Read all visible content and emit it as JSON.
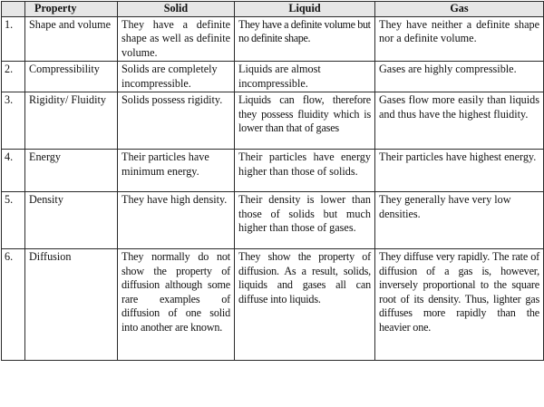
{
  "headers": {
    "num": "",
    "property": "Property",
    "solid": "Solid",
    "liquid": "Liquid",
    "gas": "Gas"
  },
  "rows": [
    {
      "num": "1.",
      "property": "Shape and volume",
      "solid": "They have a definite shape as well as definite volume.",
      "liquid": "They have a definite volume but no definite shape.",
      "gas": "They have neither a definite shape nor a definite volume."
    },
    {
      "num": "2.",
      "property": "Compressibility",
      "solid": "Solids are completely incompressible.",
      "liquid": "Liquids are almost incompressible.",
      "gas": "Gases are highly compressible."
    },
    {
      "num": "3.",
      "property": "Rigidity/ Fluidity",
      "solid": "Solids possess rigidity.",
      "liquid": "Liquids can flow, therefore they possess fluidity which is lower than that of gases",
      "gas": "Gases flow more easily than liquids and thus have the highest fluidity."
    },
    {
      "num": "4.",
      "property": "Energy",
      "solid": "Their particles have minimum energy.",
      "liquid": "Their particles have energy higher than those of solids.",
      "gas": "Their particles have highest energy."
    },
    {
      "num": "5.",
      "property": "Density",
      "solid": "They have high density.",
      "liquid": "Their density is lower than those of solids but much higher than those of gases.",
      "gas": "They generally have very low densities."
    },
    {
      "num": "6.",
      "property": "Diffusion",
      "solid": "They normally do not show the property of diffusion although some rare examples of diffusion of one solid into another are known.",
      "liquid": "They show the property of diffusion. As a result, solids, liquids and gases all can diffuse into liquids.",
      "gas": "They diffuse very rapidly. The rate of diffusion of a gas is, however, inversely proportional to the square root of its density. Thus, lighter gas diffuses more rapidly than the heavier one."
    }
  ]
}
